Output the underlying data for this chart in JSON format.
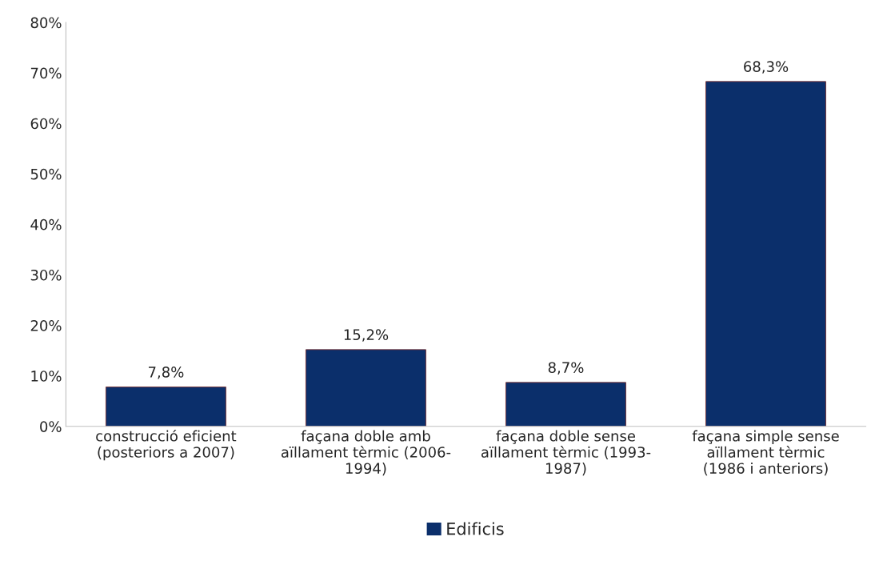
{
  "chart_data": {
    "type": "bar",
    "categories": [
      "construcció eficient\n(posteriors a 2007)",
      "façana doble amb\naïllament tèrmic (2006-\n1994)",
      "façana doble sense\naïllament tèrmic (1993-\n1987)",
      "façana simple sense\naïllament tèrmic\n(1986 i anteriors)"
    ],
    "series": [
      {
        "name": "Edificis",
        "color": "#0b2f6b",
        "values": [
          7.8,
          15.2,
          8.7,
          68.3
        ],
        "value_labels": [
          "7,8%",
          "15,2%",
          "8,7%",
          "68,3%"
        ]
      }
    ],
    "ylim": [
      0,
      80
    ],
    "yticks": [
      {
        "value": 0,
        "label": "0%"
      },
      {
        "value": 10,
        "label": "10%"
      },
      {
        "value": 20,
        "label": "20%"
      },
      {
        "value": 30,
        "label": "30%"
      },
      {
        "value": 40,
        "label": "40%"
      },
      {
        "value": 50,
        "label": "50%"
      },
      {
        "value": 60,
        "label": "60%"
      },
      {
        "value": 70,
        "label": "70%"
      },
      {
        "value": 80,
        "label": "80%"
      }
    ],
    "grid": false,
    "legend": "bottom"
  }
}
